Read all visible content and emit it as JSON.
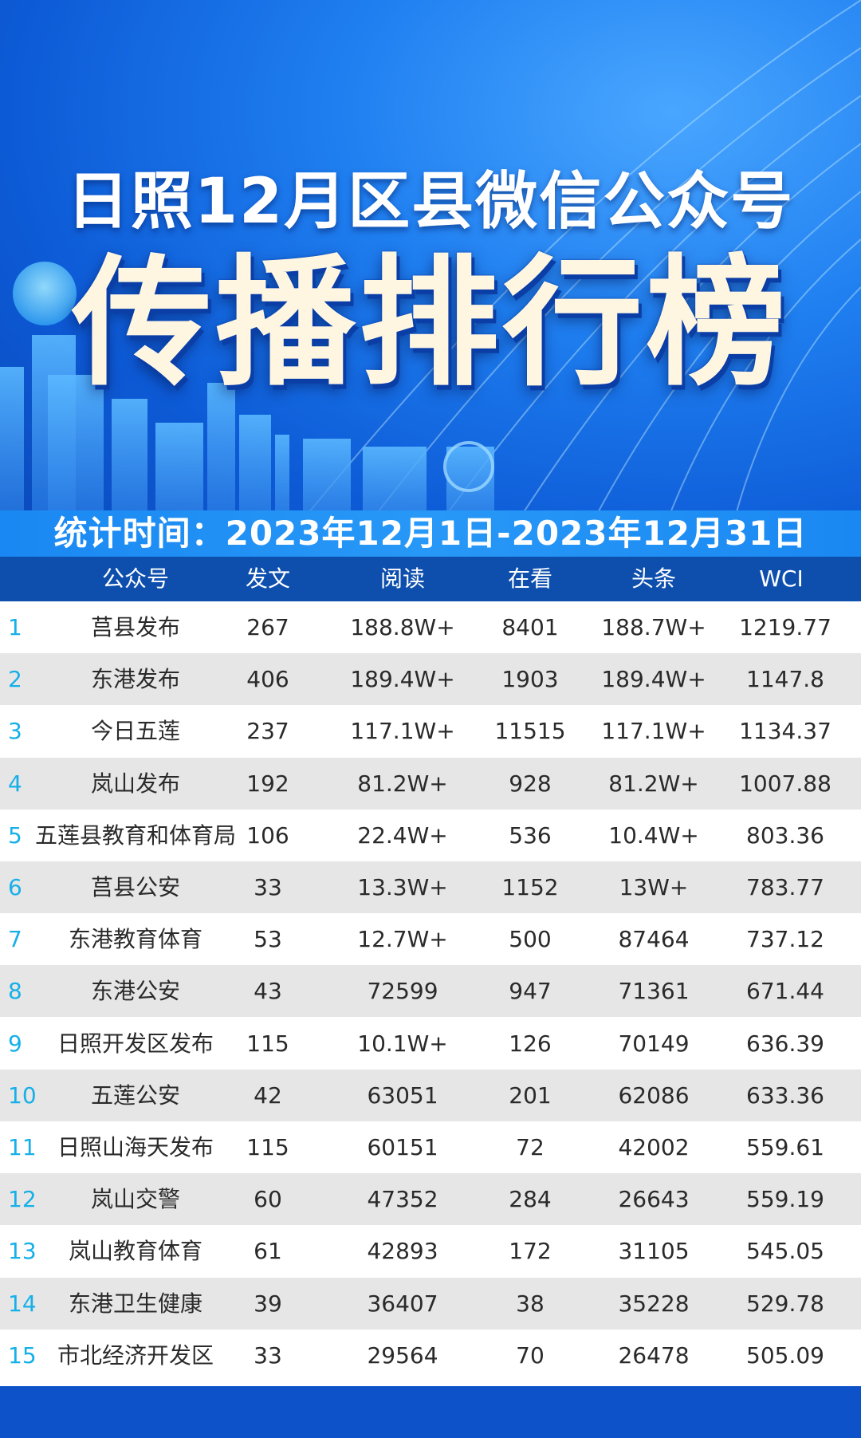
{
  "header": {
    "subtitle": "日照12月区县微信公众号",
    "title": "传播排行榜",
    "period": "统计时间：2023年12月1日-2023年12月31日"
  },
  "table": {
    "columns": [
      "公众号",
      "发文",
      "阅读",
      "在看",
      "头条",
      "WCI"
    ],
    "rows": [
      {
        "rank": "1",
        "name": "莒县发布",
        "posts": "267",
        "reads": "188.8W+",
        "likes": "8401",
        "headline": "188.7W+",
        "wci": "1219.77"
      },
      {
        "rank": "2",
        "name": "东港发布",
        "posts": "406",
        "reads": "189.4W+",
        "likes": "1903",
        "headline": "189.4W+",
        "wci": "1147.8"
      },
      {
        "rank": "3",
        "name": "今日五莲",
        "posts": "237",
        "reads": "117.1W+",
        "likes": "11515",
        "headline": "117.1W+",
        "wci": "1134.37"
      },
      {
        "rank": "4",
        "name": "岚山发布",
        "posts": "192",
        "reads": "81.2W+",
        "likes": "928",
        "headline": "81.2W+",
        "wci": "1007.88"
      },
      {
        "rank": "5",
        "name": "五莲县教育和体育局",
        "posts": "106",
        "reads": "22.4W+",
        "likes": "536",
        "headline": "10.4W+",
        "wci": "803.36"
      },
      {
        "rank": "6",
        "name": "莒县公安",
        "posts": "33",
        "reads": "13.3W+",
        "likes": "1152",
        "headline": "13W+",
        "wci": "783.77"
      },
      {
        "rank": "7",
        "name": "东港教育体育",
        "posts": "53",
        "reads": "12.7W+",
        "likes": "500",
        "headline": "87464",
        "wci": "737.12"
      },
      {
        "rank": "8",
        "name": "东港公安",
        "posts": "43",
        "reads": "72599",
        "likes": "947",
        "headline": "71361",
        "wci": "671.44"
      },
      {
        "rank": "9",
        "name": "日照开发区发布",
        "posts": "115",
        "reads": "10.1W+",
        "likes": "126",
        "headline": "70149",
        "wci": "636.39"
      },
      {
        "rank": "10",
        "name": "五莲公安",
        "posts": "42",
        "reads": "63051",
        "likes": "201",
        "headline": "62086",
        "wci": "633.36"
      },
      {
        "rank": "11",
        "name": "日照山海天发布",
        "posts": "115",
        "reads": "60151",
        "likes": "72",
        "headline": "42002",
        "wci": "559.61"
      },
      {
        "rank": "12",
        "name": "岚山交警",
        "posts": "60",
        "reads": "47352",
        "likes": "284",
        "headline": "26643",
        "wci": "559.19"
      },
      {
        "rank": "13",
        "name": "岚山教育体育",
        "posts": "61",
        "reads": "42893",
        "likes": "172",
        "headline": "31105",
        "wci": "545.05"
      },
      {
        "rank": "14",
        "name": "东港卫生健康",
        "posts": "39",
        "reads": "36407",
        "likes": "38",
        "headline": "35228",
        "wci": "529.78"
      },
      {
        "rank": "15",
        "name": "市北经济开发区",
        "posts": "33",
        "reads": "29564",
        "likes": "70",
        "headline": "26478",
        "wci": "505.09"
      }
    ]
  },
  "colors": {
    "header_bg": "#0e4fae",
    "row_alt": "#e6e6e6",
    "rank": "#16b0e8",
    "footer": "#0d52c9"
  }
}
